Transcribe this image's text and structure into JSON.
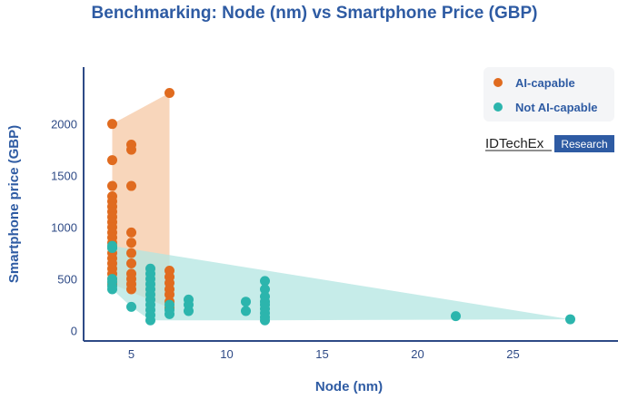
{
  "chart_data": {
    "type": "scatter",
    "title": "Benchmarking: Node (nm) vs Smartphone Price (GBP)",
    "xlabel": "Node (nm)",
    "ylabel": "Smartphone price (GBP)",
    "xlim": [
      2.5,
      30.5
    ],
    "ylim": [
      -100,
      2550
    ],
    "xticks": [
      5,
      10,
      15,
      20,
      25
    ],
    "yticks": [
      0,
      500,
      1000,
      1500,
      2000
    ],
    "grid": false,
    "legend_position": "top-right",
    "series": [
      {
        "name": "AI-capable",
        "color": "#e06b1f",
        "hull_color": "#f6c8a4",
        "points": [
          {
            "x": 4,
            "y": 2000
          },
          {
            "x": 4,
            "y": 1650
          },
          {
            "x": 4,
            "y": 1400
          },
          {
            "x": 4,
            "y": 1300
          },
          {
            "x": 4,
            "y": 1250
          },
          {
            "x": 4,
            "y": 1200
          },
          {
            "x": 4,
            "y": 1150
          },
          {
            "x": 4,
            "y": 1100
          },
          {
            "x": 4,
            "y": 1050
          },
          {
            "x": 4,
            "y": 1000
          },
          {
            "x": 4,
            "y": 950
          },
          {
            "x": 4,
            "y": 900
          },
          {
            "x": 4,
            "y": 850
          },
          {
            "x": 4,
            "y": 800
          },
          {
            "x": 4,
            "y": 750
          },
          {
            "x": 4,
            "y": 700
          },
          {
            "x": 4,
            "y": 650
          },
          {
            "x": 4,
            "y": 600
          },
          {
            "x": 4,
            "y": 550
          },
          {
            "x": 4,
            "y": 500
          },
          {
            "x": 4,
            "y": 450
          },
          {
            "x": 5,
            "y": 1800
          },
          {
            "x": 5,
            "y": 1750
          },
          {
            "x": 5,
            "y": 1400
          },
          {
            "x": 5,
            "y": 950
          },
          {
            "x": 5,
            "y": 850
          },
          {
            "x": 5,
            "y": 750
          },
          {
            "x": 5,
            "y": 650
          },
          {
            "x": 5,
            "y": 550
          },
          {
            "x": 5,
            "y": 500
          },
          {
            "x": 5,
            "y": 450
          },
          {
            "x": 5,
            "y": 400
          },
          {
            "x": 7,
            "y": 2300
          },
          {
            "x": 7,
            "y": 580
          },
          {
            "x": 7,
            "y": 520
          },
          {
            "x": 7,
            "y": 460
          },
          {
            "x": 7,
            "y": 400
          },
          {
            "x": 7,
            "y": 350
          },
          {
            "x": 7,
            "y": 280
          },
          {
            "x": 7,
            "y": 220
          }
        ]
      },
      {
        "name": "Not AI-capable",
        "color": "#2cb5ad",
        "hull_color": "#b3e6e2",
        "points": [
          {
            "x": 4,
            "y": 820
          },
          {
            "x": 4,
            "y": 800
          },
          {
            "x": 4,
            "y": 500
          },
          {
            "x": 4,
            "y": 470
          },
          {
            "x": 4,
            "y": 430
          },
          {
            "x": 4,
            "y": 400
          },
          {
            "x": 5,
            "y": 230
          },
          {
            "x": 6,
            "y": 600
          },
          {
            "x": 6,
            "y": 550
          },
          {
            "x": 6,
            "y": 500
          },
          {
            "x": 6,
            "y": 450
          },
          {
            "x": 6,
            "y": 400
          },
          {
            "x": 6,
            "y": 350
          },
          {
            "x": 6,
            "y": 300
          },
          {
            "x": 6,
            "y": 250
          },
          {
            "x": 6,
            "y": 200
          },
          {
            "x": 6,
            "y": 150
          },
          {
            "x": 6,
            "y": 100
          },
          {
            "x": 7,
            "y": 250
          },
          {
            "x": 7,
            "y": 200
          },
          {
            "x": 7,
            "y": 160
          },
          {
            "x": 8,
            "y": 300
          },
          {
            "x": 8,
            "y": 250
          },
          {
            "x": 8,
            "y": 190
          },
          {
            "x": 11,
            "y": 280
          },
          {
            "x": 11,
            "y": 190
          },
          {
            "x": 12,
            "y": 480
          },
          {
            "x": 12,
            "y": 400
          },
          {
            "x": 12,
            "y": 330
          },
          {
            "x": 12,
            "y": 280
          },
          {
            "x": 12,
            "y": 250
          },
          {
            "x": 12,
            "y": 210
          },
          {
            "x": 12,
            "y": 170
          },
          {
            "x": 12,
            "y": 130
          },
          {
            "x": 12,
            "y": 100
          },
          {
            "x": 22,
            "y": 140
          },
          {
            "x": 28,
            "y": 110
          }
        ]
      }
    ]
  },
  "title_color": "#2e5ba3",
  "axis_color": "#2e4a86",
  "logo": {
    "brand": "IDTechEx",
    "tag": "Research",
    "tag_bg": "#2e5ba3"
  }
}
